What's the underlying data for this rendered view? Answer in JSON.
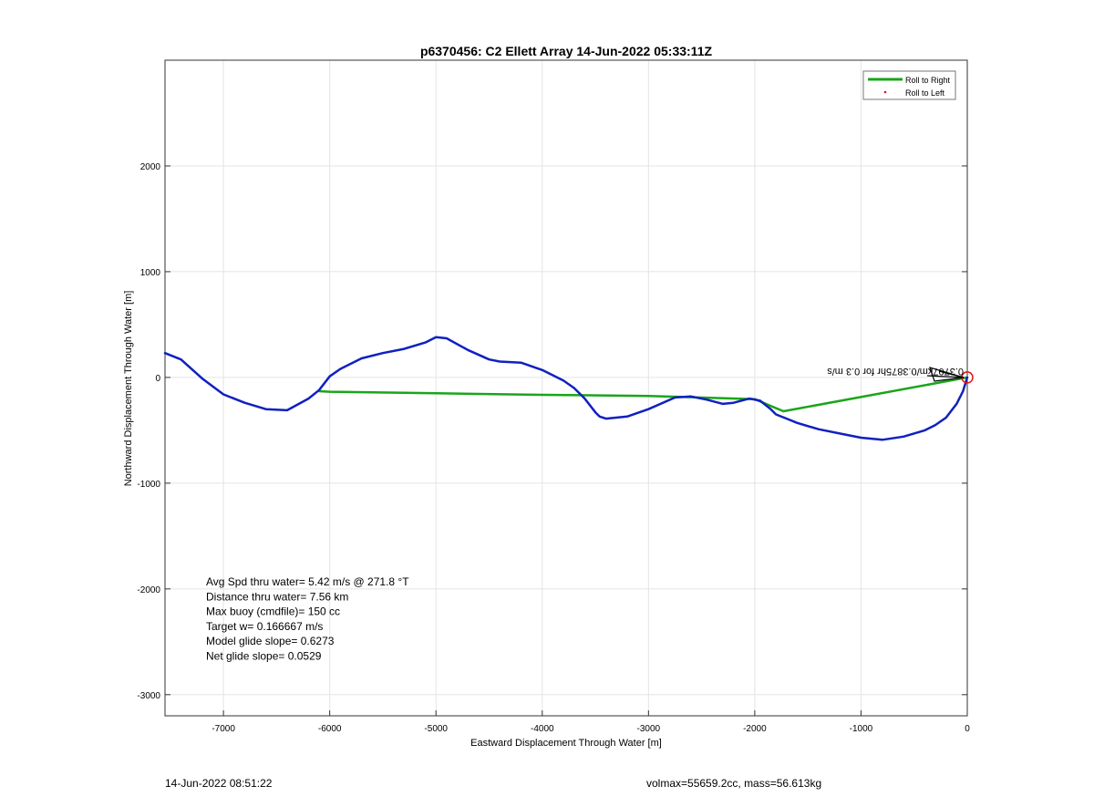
{
  "chart_data": {
    "type": "line",
    "title": "p6370456: C2 Ellett Array 14-Jun-2022 05:33:11Z",
    "xlabel": "Eastward Displacement Through Water [m]",
    "ylabel": "Northward Displacement Through Water [m]",
    "xlim": [
      -7550,
      0
    ],
    "ylim": [
      -3200,
      3000
    ],
    "xticks": [
      -7000,
      -6000,
      -5000,
      -4000,
      -3000,
      -2000,
      -1000,
      0
    ],
    "yticks": [
      2000,
      1000,
      0,
      -1000,
      -2000,
      -3000
    ],
    "grid": true,
    "legend_position": "top-right",
    "legend": [
      {
        "label": "Roll to Right",
        "style": "line",
        "color": "#1aa51a"
      },
      {
        "label": "Roll to Left",
        "style": "dot",
        "color": "#e8101a"
      }
    ],
    "series": [
      {
        "style": "green-line",
        "color": "#1aa51a",
        "x": [
          0,
          -1730,
          -1850,
          -2000,
          -3000,
          -4000,
          -5000,
          -6000,
          -6100
        ],
        "y": [
          0,
          -320,
          -270,
          -205,
          -175,
          -165,
          -150,
          -135,
          -130
        ]
      },
      {
        "style": "blue-track",
        "color": "#1020c0",
        "x": [
          0,
          -40,
          -100,
          -200,
          -300,
          -400,
          -600,
          -800,
          -1000,
          -1200,
          -1400,
          -1600,
          -1700,
          -1800,
          -1850,
          -1950,
          -2050,
          -2200,
          -2300,
          -2450,
          -2600,
          -2750,
          -3000,
          -3200,
          -3400,
          -3460,
          -3500,
          -3600,
          -3700,
          -3800,
          -4000,
          -4200,
          -4400,
          -4500,
          -4700,
          -4900,
          -5000,
          -5100,
          -5300,
          -5500,
          -5700,
          -5900,
          -6000,
          -6100,
          -6200,
          -6400,
          -6600,
          -6800,
          -7000,
          -7200,
          -7400,
          -7550
        ],
        "y": [
          0,
          -130,
          -250,
          -380,
          -450,
          -500,
          -560,
          -590,
          -570,
          -530,
          -490,
          -430,
          -390,
          -350,
          -300,
          -220,
          -200,
          -240,
          -250,
          -210,
          -180,
          -190,
          -300,
          -370,
          -390,
          -370,
          -330,
          -200,
          -100,
          -30,
          70,
          140,
          150,
          170,
          260,
          370,
          380,
          330,
          270,
          230,
          180,
          80,
          10,
          -120,
          -200,
          -310,
          -300,
          -240,
          -160,
          -10,
          170,
          230
        ]
      }
    ],
    "annotations": [
      {
        "text": "Avg Spd thru water=  5.42 m/s @ 271.8 °T"
      },
      {
        "text": "Distance thru water=  7.56 km"
      },
      {
        "text": "Max buoy (cmdfile)= 150 cc"
      },
      {
        "text": "Target w= 0.166667 m/s"
      },
      {
        "text": "Model glide slope= 0.6273"
      },
      {
        "text": "Net glide slope= 0.0529"
      }
    ],
    "arrow_label": "0.3707km/0.3875hr for 0.3 m/s",
    "end_marker_color": "#e8101a"
  },
  "footer": {
    "left": "14-Jun-2022 08:51:22",
    "right": "volmax=55659.2cc, mass=56.613kg"
  }
}
